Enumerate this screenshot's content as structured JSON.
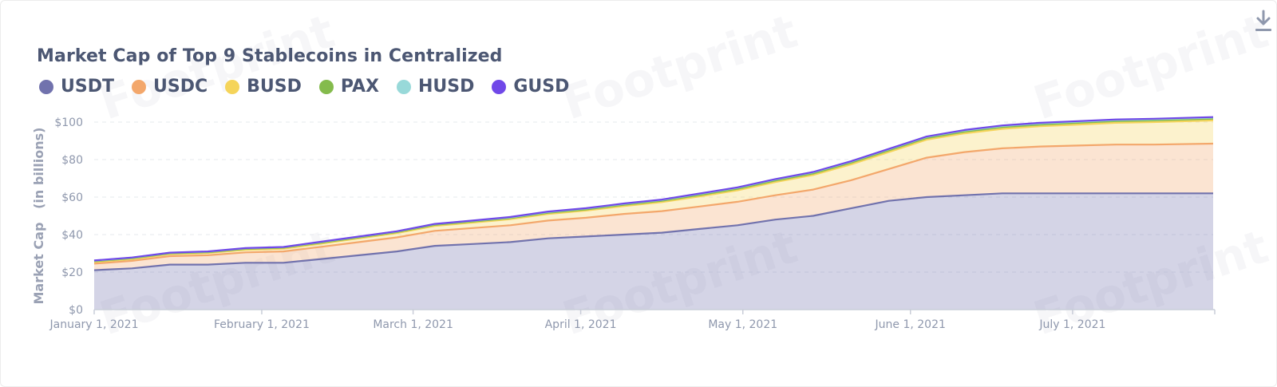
{
  "chart_data": {
    "type": "area",
    "stacked": true,
    "title": "Market Cap of Top 9 Stablecoins in Centralized",
    "ylabel": "Market Cap   (in billions)",
    "xlabel": "",
    "ylim": [
      0,
      100
    ],
    "yticks": [
      0,
      20,
      40,
      60,
      80,
      100
    ],
    "ytick_labels": [
      "$0",
      "$20",
      "$40",
      "$60",
      "$80",
      "$100"
    ],
    "x_start": "2021-01-01",
    "x_end": "2021-07-27",
    "xtick_dates": [
      "2021-01-01",
      "2021-02-01",
      "2021-03-01",
      "2021-04-01",
      "2021-05-01",
      "2021-06-01",
      "2021-07-01"
    ],
    "xtick_labels": [
      "January 1, 2021",
      "February 1, 2021",
      "March 1, 2021",
      "April 1, 2021",
      "May 1, 2021",
      "June 1, 2021",
      "July 1, 2021"
    ],
    "x": [
      "2021-01-01",
      "2021-01-08",
      "2021-01-15",
      "2021-01-22",
      "2021-01-29",
      "2021-02-05",
      "2021-02-12",
      "2021-02-19",
      "2021-02-26",
      "2021-03-05",
      "2021-03-12",
      "2021-03-19",
      "2021-03-26",
      "2021-04-02",
      "2021-04-09",
      "2021-04-16",
      "2021-04-23",
      "2021-04-30",
      "2021-05-07",
      "2021-05-14",
      "2021-05-21",
      "2021-05-28",
      "2021-06-04",
      "2021-06-11",
      "2021-06-18",
      "2021-06-25",
      "2021-07-02",
      "2021-07-09",
      "2021-07-16",
      "2021-07-27"
    ],
    "series": [
      {
        "name": "USDT",
        "color": "#7172ad",
        "values": [
          21,
          22,
          24,
          24,
          25,
          25,
          27,
          29,
          31,
          34,
          35,
          36,
          38,
          39,
          40,
          41,
          43,
          45,
          48,
          50,
          54,
          58,
          60,
          61,
          62,
          62,
          62,
          62,
          62,
          62
        ]
      },
      {
        "name": "USDC",
        "color": "#f3a76b",
        "values": [
          3.5,
          4.0,
          4.5,
          5.0,
          5.5,
          6.0,
          6.5,
          7.0,
          7.5,
          8.0,
          8.5,
          9.0,
          9.5,
          10.0,
          11.0,
          11.5,
          12.0,
          12.5,
          13.0,
          14.0,
          15.0,
          17.0,
          21.0,
          23.0,
          24.0,
          25.0,
          25.5,
          26.0,
          26.0,
          26.5
        ]
      },
      {
        "name": "BUSD",
        "color": "#f5d45a",
        "values": [
          0.9,
          1.0,
          1.1,
          1.2,
          1.4,
          1.5,
          1.7,
          2.0,
          2.3,
          2.6,
          2.9,
          3.2,
          3.5,
          3.8,
          4.2,
          4.8,
          5.4,
          6.1,
          7.0,
          7.8,
          8.4,
          9.0,
          9.6,
          10.0,
          10.4,
          10.8,
          11.2,
          11.6,
          12.0,
          12.4
        ]
      },
      {
        "name": "PAX",
        "color": "#84bb4c",
        "values": [
          0.4,
          0.4,
          0.4,
          0.4,
          0.5,
          0.5,
          0.5,
          0.5,
          0.5,
          0.6,
          0.6,
          0.6,
          0.6,
          0.6,
          0.7,
          0.7,
          0.7,
          0.8,
          0.8,
          0.8,
          0.9,
          0.9,
          0.9,
          0.9,
          0.9,
          0.9,
          0.9,
          0.9,
          0.9,
          0.9
        ]
      },
      {
        "name": "HUSD",
        "color": "#98d9d9",
        "values": [
          0.3,
          0.3,
          0.3,
          0.3,
          0.3,
          0.3,
          0.4,
          0.4,
          0.4,
          0.4,
          0.4,
          0.4,
          0.5,
          0.5,
          0.5,
          0.5,
          0.6,
          0.6,
          0.6,
          0.6,
          0.6,
          0.6,
          0.6,
          0.6,
          0.6,
          0.6,
          0.6,
          0.6,
          0.6,
          0.6
        ]
      },
      {
        "name": "GUSD",
        "color": "#7048e8",
        "values": [
          0.1,
          0.1,
          0.1,
          0.1,
          0.1,
          0.1,
          0.1,
          0.1,
          0.1,
          0.1,
          0.1,
          0.2,
          0.2,
          0.2,
          0.2,
          0.2,
          0.2,
          0.2,
          0.2,
          0.2,
          0.2,
          0.2,
          0.2,
          0.3,
          0.3,
          0.3,
          0.3,
          0.3,
          0.3,
          0.3
        ]
      }
    ],
    "grid": true,
    "legend_position": "top-left"
  },
  "watermark_text": "Footprint",
  "icons": {
    "download": "download-icon"
  }
}
